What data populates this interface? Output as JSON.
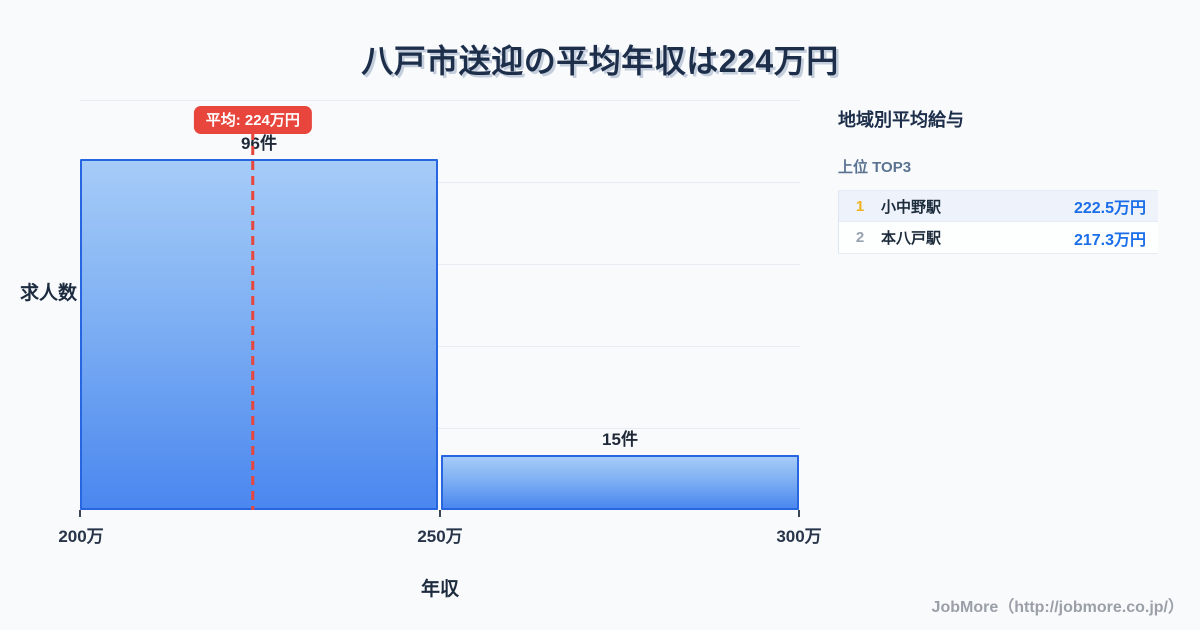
{
  "title": "八戸市送迎の平均年収は224万円",
  "chart_data": {
    "type": "bar",
    "title": "八戸市送迎の平均年収は224万円",
    "categories": [
      "200万-250万",
      "250万-300万"
    ],
    "values": [
      96,
      15
    ],
    "value_labels": [
      "96件",
      "15件"
    ],
    "unit": "件",
    "xlabel": "年収",
    "ylabel": "求人数",
    "tick_labels": [
      "200万",
      "250万",
      "300万"
    ],
    "xlim": [
      200,
      300
    ],
    "ylim": [
      0,
      112
    ],
    "grid": "horizontal",
    "average_line": {
      "value": 224,
      "label": "平均: 224万円",
      "color": "#e8453d",
      "style": "dashed"
    },
    "bar_colors": {
      "border": "#2766e0",
      "fill_top": "#a6ccf8",
      "fill_bottom": "#4a87ef"
    }
  },
  "sidebar": {
    "heading": "地域別平均給与",
    "subheading": "上位 TOP3",
    "rows": [
      {
        "rank": "1",
        "name": "小中野駅",
        "value": "222.5万円"
      },
      {
        "rank": "2",
        "name": "本八戸駅",
        "value": "217.3万円"
      }
    ],
    "rank1_color": "#efb11d",
    "value_color": "#1a6ee8"
  },
  "footer": {
    "credit": "JobMore（http://jobmore.co.jp/）"
  },
  "colors": {
    "background": "#f8fafc",
    "title_text": "#1d2e4a",
    "accent_red": "#e8453d",
    "accent_blue": "#2766e0",
    "gridline": "#e7ebf2"
  }
}
